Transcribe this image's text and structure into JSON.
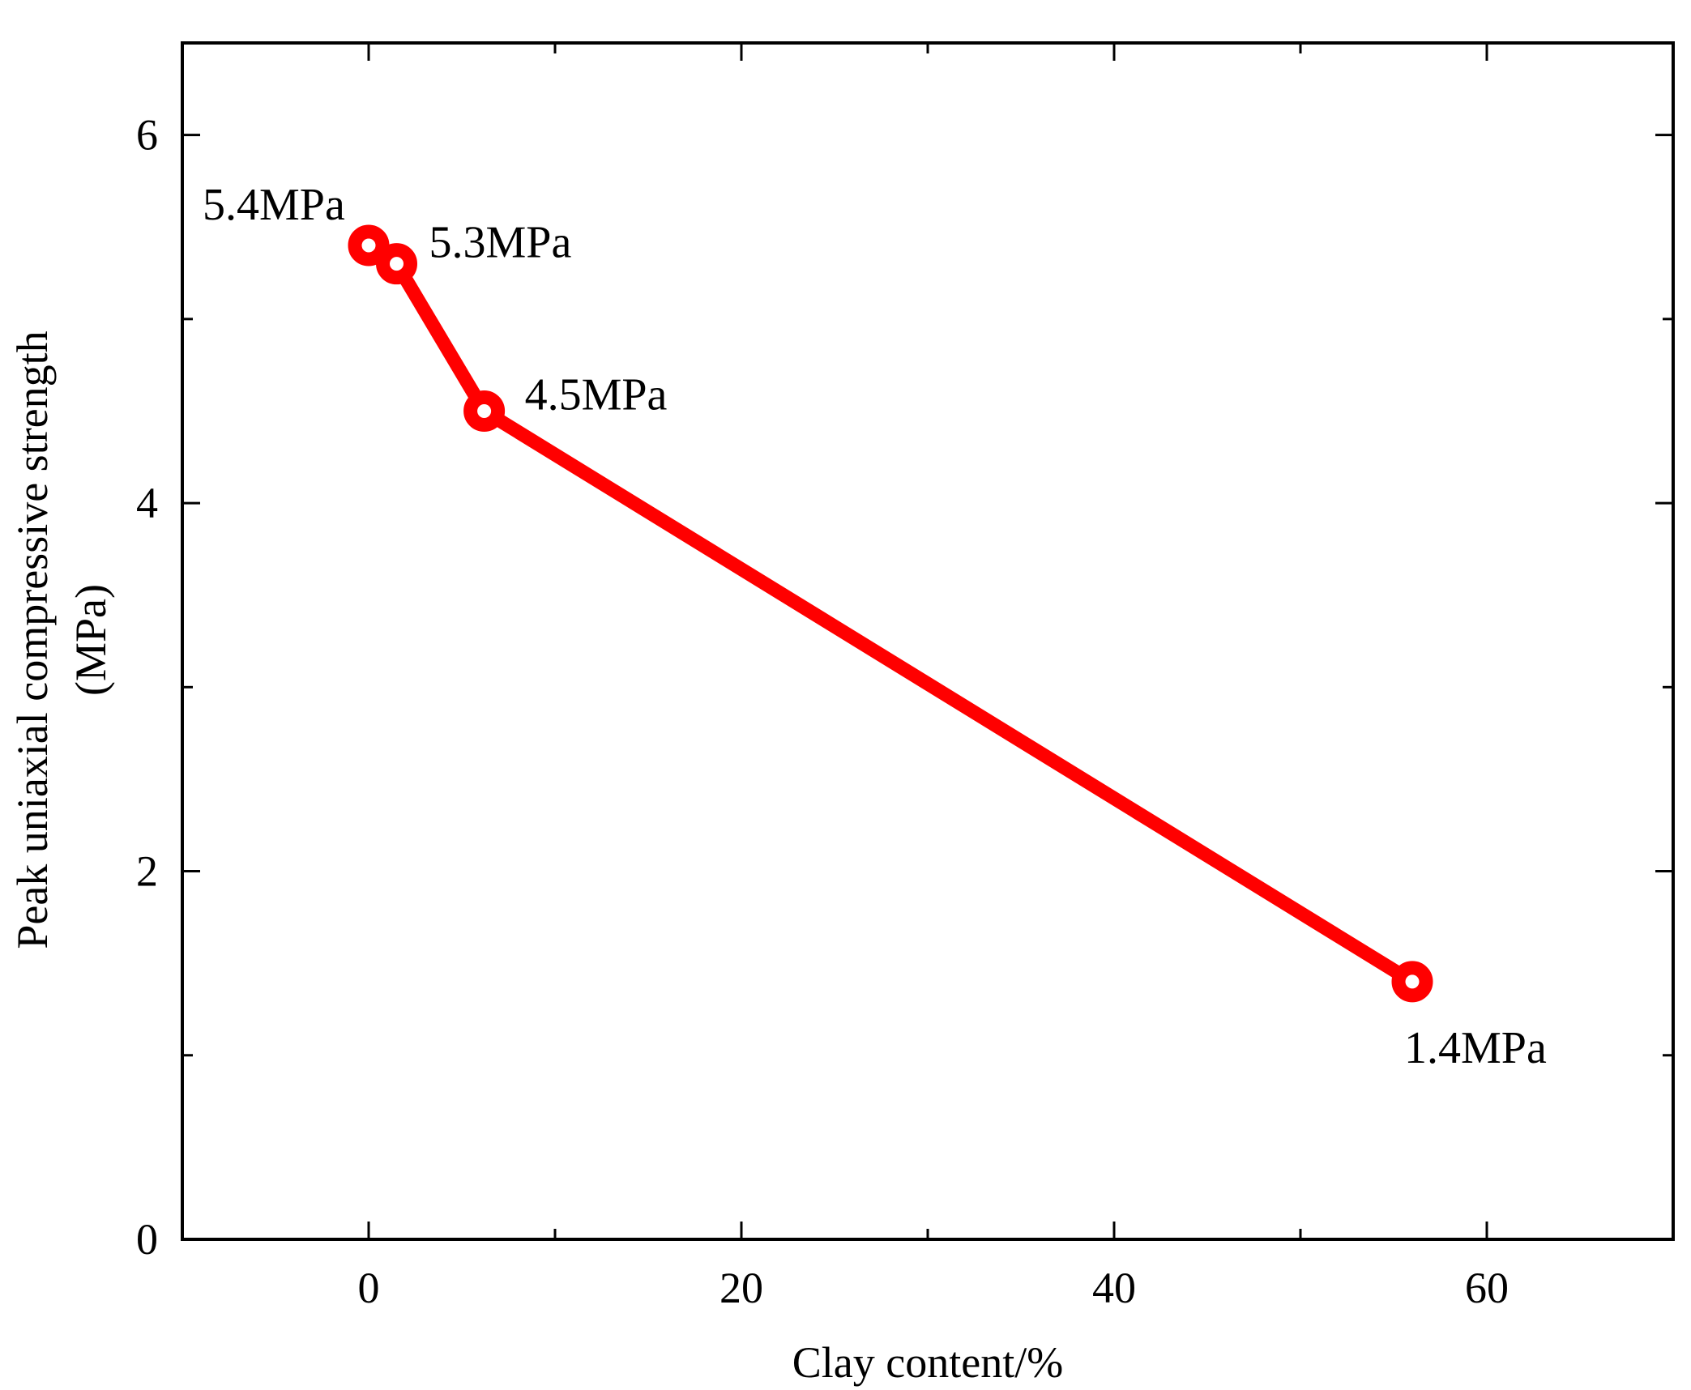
{
  "chart_data": {
    "type": "line",
    "title": "",
    "xlabel": "Clay content/%",
    "ylabel_lines": [
      "Peak uniaxial  compressive strength",
      "(MPa)"
    ],
    "xlim": [
      -10,
      70
    ],
    "ylim": [
      0,
      6.5
    ],
    "x_major_ticks": [
      0,
      20,
      40,
      60
    ],
    "x_minor_ticks": [
      10,
      30,
      50
    ],
    "y_major_ticks": [
      0,
      2,
      4,
      6
    ],
    "y_minor_ticks": [
      1,
      3,
      5
    ],
    "x_tick_labels": [
      "0",
      "20",
      "40",
      "60"
    ],
    "y_tick_labels": [
      "0",
      "2",
      "4",
      "6"
    ],
    "grid": false,
    "series": [
      {
        "color": "#ff0000",
        "marker": "open-circle",
        "x": [
          0,
          1.5,
          6.2,
          56
        ],
        "y": [
          5.4,
          5.3,
          4.5,
          1.4
        ]
      }
    ],
    "annotations": [
      {
        "text": "5.4MPa",
        "x": 0,
        "y": 5.4
      },
      {
        "text": "5.3MPa",
        "x": 1.5,
        "y": 5.3
      },
      {
        "text": "4.5MPa",
        "x": 6.2,
        "y": 4.5
      },
      {
        "text": "1.4MPa",
        "x": 56,
        "y": 1.4
      }
    ]
  }
}
